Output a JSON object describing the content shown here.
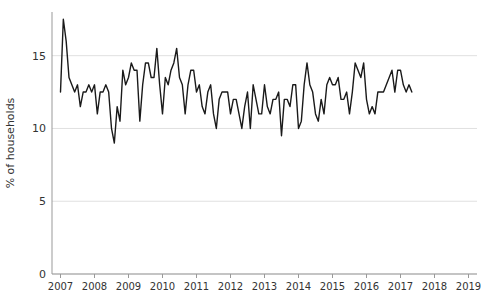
{
  "chart_data": {
    "type": "line",
    "ylabel": "% of households",
    "x": [
      2007,
      2007.0833333333333,
      2007.1666666666667,
      2007.25,
      2007.3333333333333,
      2007.4166666666667,
      2007.5,
      2007.5833333333333,
      2007.6666666666667,
      2007.75,
      2007.8333333333333,
      2007.9166666666667,
      2008,
      2008.0833333333333,
      2008.1666666666667,
      2008.25,
      2008.3333333333333,
      2008.4166666666667,
      2008.5,
      2008.5833333333333,
      2008.6666666666667,
      2008.75,
      2008.8333333333333,
      2008.9166666666667,
      2009,
      2009.0833333333333,
      2009.1666666666667,
      2009.25,
      2009.3333333333333,
      2009.4166666666667,
      2009.5,
      2009.5833333333333,
      2009.6666666666667,
      2009.75,
      2009.8333333333333,
      2009.9166666666667,
      2010,
      2010.0833333333333,
      2010.1666666666667,
      2010.25,
      2010.3333333333333,
      2010.4166666666667,
      2010.5,
      2010.5833333333333,
      2010.6666666666667,
      2010.75,
      2010.8333333333333,
      2010.9166666666667,
      2011,
      2011.0833333333333,
      2011.1666666666667,
      2011.25,
      2011.3333333333333,
      2011.4166666666667,
      2011.5,
      2011.5833333333333,
      2011.6666666666667,
      2011.75,
      2011.8333333333333,
      2011.9166666666667,
      2012,
      2012.0833333333333,
      2012.1666666666667,
      2012.25,
      2012.3333333333333,
      2012.4166666666667,
      2012.5,
      2012.5833333333333,
      2012.6666666666667,
      2012.75,
      2012.8333333333333,
      2012.9166666666667,
      2013,
      2013.0833333333333,
      2013.1666666666667,
      2013.25,
      2013.3333333333333,
      2013.4166666666667,
      2013.5,
      2013.5833333333333,
      2013.6666666666667,
      2013.75,
      2013.8333333333333,
      2013.9166666666667,
      2014,
      2014.0833333333333,
      2014.1666666666667,
      2014.25,
      2014.3333333333333,
      2014.4166666666667,
      2014.5,
      2014.5833333333333,
      2014.6666666666667,
      2014.75,
      2014.8333333333333,
      2014.9166666666667,
      2015,
      2015.0833333333333,
      2015.1666666666667,
      2015.25,
      2015.3333333333333,
      2015.4166666666667,
      2015.5,
      2015.5833333333333,
      2015.6666666666667,
      2015.75,
      2015.8333333333333,
      2015.9166666666667,
      2016,
      2016.0833333333333,
      2016.1666666666667,
      2016.25,
      2016.3333333333333,
      2016.4166666666667,
      2016.5,
      2016.5833333333333,
      2016.6666666666667,
      2016.75,
      2016.8333333333333,
      2016.9166666666667,
      2017,
      2017.0833333333333,
      2017.1666666666667,
      2017.25,
      2017.3333333333333
    ],
    "values": [
      12.5,
      17.5,
      16.0,
      13.5,
      13.0,
      12.5,
      13.0,
      11.5,
      12.5,
      12.5,
      13.0,
      12.5,
      13.0,
      11.0,
      12.5,
      12.5,
      13.0,
      12.5,
      10.0,
      9.0,
      11.5,
      10.5,
      14.0,
      13.0,
      13.5,
      14.5,
      14.0,
      14.0,
      10.5,
      13.0,
      14.5,
      14.5,
      13.5,
      13.5,
      15.5,
      13.0,
      11.0,
      13.5,
      13.0,
      14.0,
      14.5,
      15.5,
      13.5,
      13.0,
      11.0,
      13.0,
      14.0,
      14.0,
      12.5,
      13.0,
      11.5,
      11.0,
      12.5,
      13.0,
      11.0,
      10.0,
      12.0,
      12.5,
      12.5,
      12.5,
      11.0,
      12.0,
      12.0,
      11.0,
      10.0,
      11.5,
      12.5,
      10.0,
      13.0,
      12.0,
      11.0,
      11.0,
      13.0,
      11.5,
      11.0,
      12.0,
      12.0,
      12.5,
      9.5,
      12.0,
      12.0,
      11.5,
      13.0,
      13.0,
      10.0,
      10.5,
      13.0,
      14.5,
      13.0,
      12.5,
      11.0,
      10.5,
      12.0,
      11.0,
      13.0,
      13.5,
      13.0,
      13.0,
      13.5,
      12.0,
      12.0,
      12.5,
      11.0,
      12.5,
      14.5,
      14.0,
      13.5,
      14.5,
      12.0,
      11.0,
      11.5,
      11.0,
      12.5,
      12.5,
      12.5,
      13.0,
      13.5,
      14.0,
      12.5,
      14.0,
      14.0,
      13.0,
      12.5,
      13.0,
      12.5
    ],
    "color": "#1a1a1a",
    "xlim": [
      2006.75,
      2019.25
    ],
    "ylim": [
      0,
      18
    ],
    "xticks": [
      2007,
      2008,
      2009,
      2010,
      2011,
      2012,
      2013,
      2014,
      2015,
      2016,
      2017,
      2018,
      2019
    ],
    "yticks": [
      0,
      5,
      10,
      15
    ],
    "grid": true
  }
}
